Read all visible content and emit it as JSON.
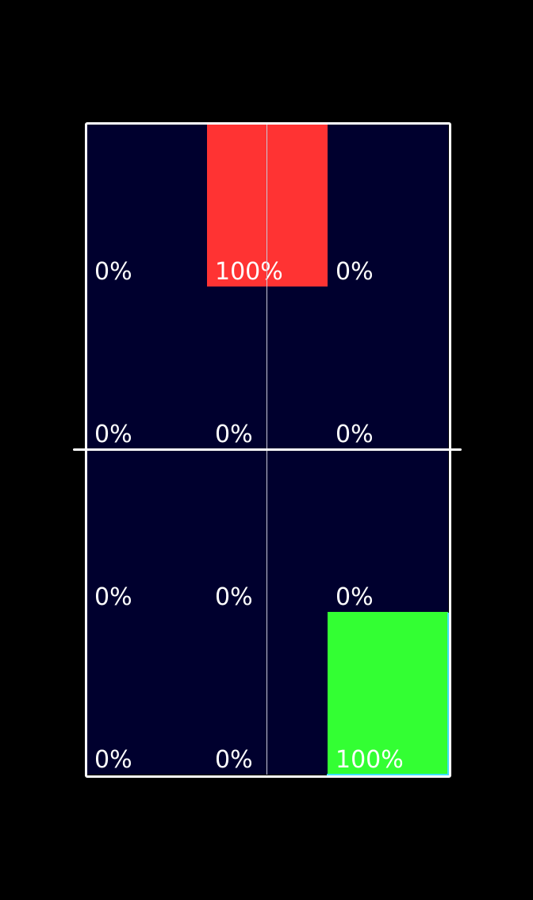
{
  "colors": {
    "background": "#000000",
    "court": "#00002e",
    "lines": "#ffffff",
    "hot_zone": "#ff3333",
    "target_zone": "#33ff33"
  },
  "grid": {
    "rows": 4,
    "cols": 3,
    "cells": [
      [
        "0%",
        "100%",
        "0%"
      ],
      [
        "0%",
        "0%",
        "0%"
      ],
      [
        "0%",
        "0%",
        "0%"
      ],
      [
        "0%",
        "0%",
        "100%"
      ]
    ],
    "fills": [
      [
        "",
        "hot_zone",
        ""
      ],
      [
        "",
        "",
        ""
      ],
      [
        "",
        "",
        ""
      ],
      [
        "",
        "",
        "target_zone"
      ]
    ]
  }
}
